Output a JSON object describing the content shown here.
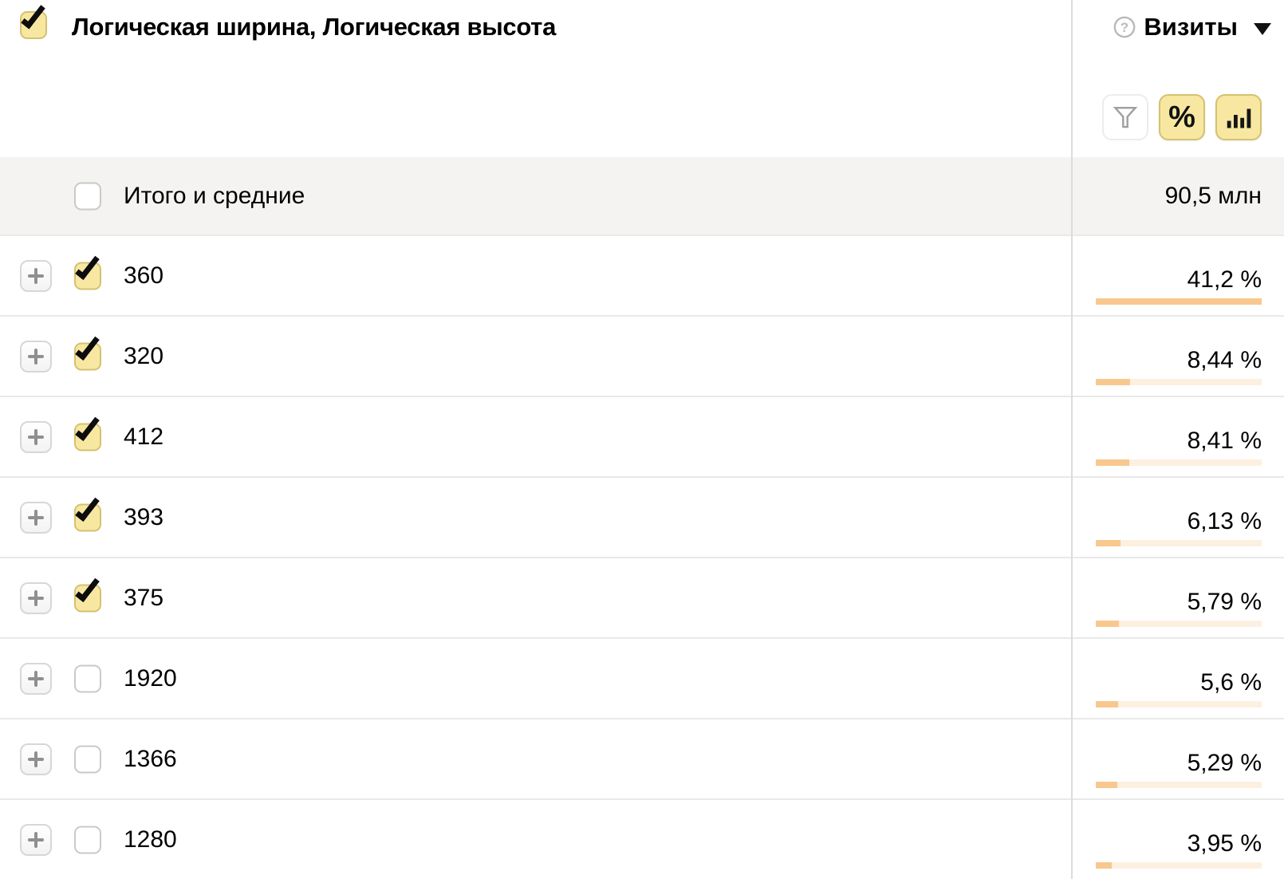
{
  "header": {
    "title": "Логическая ширина, Логическая высота",
    "select_all_checked": true,
    "metric": {
      "label": "Визиты",
      "help_icon": "question-circle-icon",
      "dropdown_icon": "caret-down-icon"
    },
    "toolbar": {
      "filter_icon": "funnel-icon",
      "percent_label": "%",
      "chart_icon": "bar-chart-icon"
    }
  },
  "totals": {
    "label": "Итого и средние",
    "value": "90,5 млн",
    "checked": false
  },
  "table": {
    "max_percent": 41.2,
    "rows": [
      {
        "label": "360",
        "value": "41,2 %",
        "percent": 41.2,
        "checked": true
      },
      {
        "label": "320",
        "value": "8,44 %",
        "percent": 8.44,
        "checked": true
      },
      {
        "label": "412",
        "value": "8,41 %",
        "percent": 8.41,
        "checked": true
      },
      {
        "label": "393",
        "value": "6,13 %",
        "percent": 6.13,
        "checked": true
      },
      {
        "label": "375",
        "value": "5,79 %",
        "percent": 5.79,
        "checked": true
      },
      {
        "label": "1920",
        "value": "5,6 %",
        "percent": 5.6,
        "checked": false
      },
      {
        "label": "1366",
        "value": "5,29 %",
        "percent": 5.29,
        "checked": false
      },
      {
        "label": "1280",
        "value": "3,95 %",
        "percent": 3.95,
        "checked": false
      }
    ]
  },
  "colors": {
    "accent_yellow": "#f7e7a1",
    "accent_yellow_border": "#d5c170",
    "bar_fill": "#f8c88e",
    "bar_track": "#fdf0e0",
    "totals_row_bg": "#f4f3f1"
  }
}
